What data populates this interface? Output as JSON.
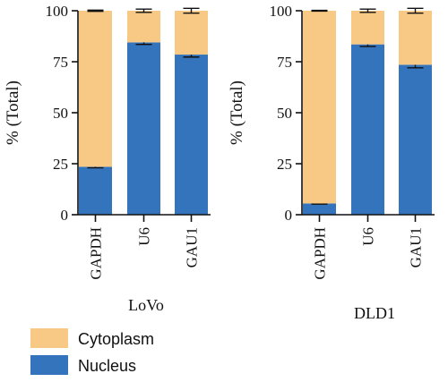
{
  "chart_data": [
    {
      "type": "bar",
      "stacked": true,
      "title": "LoVo",
      "ylabel": "% (Total)",
      "ylim": [
        0,
        100
      ],
      "yticks": [
        0,
        25,
        50,
        75,
        100
      ],
      "categories": [
        "GAPDH",
        "U6",
        "GAU1"
      ],
      "series": [
        {
          "name": "Nucleus",
          "values": [
            23.5,
            84.5,
            78.5
          ],
          "error": [
            0.5,
            1.0,
            1.2
          ]
        },
        {
          "name": "Cytoplasm",
          "values": [
            76.5,
            15.5,
            21.5
          ],
          "error": [
            0.3,
            0.8,
            1.2
          ]
        }
      ]
    },
    {
      "type": "bar",
      "stacked": true,
      "title": "DLD1",
      "ylabel": "% (Total)",
      "ylim": [
        0,
        100
      ],
      "yticks": [
        0,
        25,
        50,
        75,
        100
      ],
      "categories": [
        "GAPDH",
        "U6",
        "GAU1"
      ],
      "series": [
        {
          "name": "Nucleus",
          "values": [
            5.5,
            83.5,
            73.5
          ],
          "error": [
            0.3,
            1.0,
            1.5
          ]
        },
        {
          "name": "Cytoplasm",
          "values": [
            94.5,
            16.5,
            26.5
          ],
          "error": [
            0.2,
            0.8,
            1.2
          ]
        }
      ]
    }
  ],
  "legend": {
    "placement": "bottom-left",
    "items": [
      {
        "name": "Cytoplasm",
        "color": "#F8C985"
      },
      {
        "name": "Nucleus",
        "color": "#3474BD"
      }
    ]
  },
  "colors": {
    "Nucleus": "#3474BD",
    "Cytoplasm": "#F8C985"
  }
}
